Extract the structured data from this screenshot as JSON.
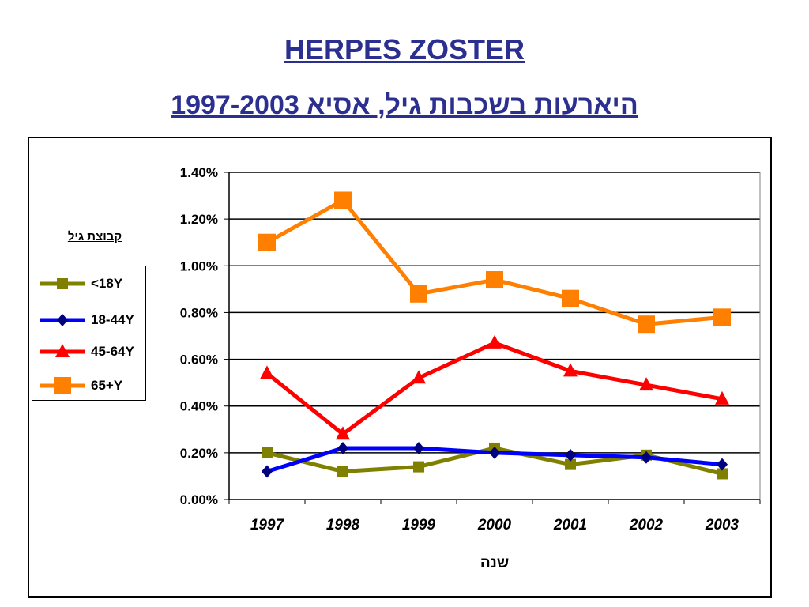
{
  "title": "HERPES ZOSTER",
  "subtitle": "היארעות בשכבות גיל, אסיא 1997-2003",
  "chart_data": {
    "type": "line",
    "x": [
      "1997",
      "1998",
      "1999",
      "2000",
      "2001",
      "2002",
      "2003"
    ],
    "xlabel": "שנה",
    "ylabel": "",
    "ylim": [
      0,
      0.014
    ],
    "yticks": [
      "0.00%",
      "0.20%",
      "0.40%",
      "0.60%",
      "0.80%",
      "1.00%",
      "1.20%",
      "1.40%"
    ],
    "grid": true,
    "legend_title": "קבוצת גיל",
    "legend_position": "left",
    "series": [
      {
        "name": "<18Y",
        "color": "#808000",
        "marker": "square",
        "values": [
          0.002,
          0.0012,
          0.0014,
          0.0022,
          0.0015,
          0.0019,
          0.0011
        ]
      },
      {
        "name": "18-44Y",
        "color": "#0000ff",
        "marker": "diamond",
        "marker_color": "#000080",
        "values": [
          0.0012,
          0.0022,
          0.0022,
          0.002,
          0.0019,
          0.0018,
          0.0015
        ]
      },
      {
        "name": "45-64Y",
        "color": "#ff0000",
        "marker": "triangle",
        "values": [
          0.0054,
          0.0028,
          0.0052,
          0.0067,
          0.0055,
          0.0049,
          0.0043
        ]
      },
      {
        "name": "65+Y",
        "color": "#ff7f00",
        "marker": "square-large",
        "values": [
          0.011,
          0.0128,
          0.0088,
          0.0094,
          0.0086,
          0.0075,
          0.0078
        ]
      }
    ]
  }
}
